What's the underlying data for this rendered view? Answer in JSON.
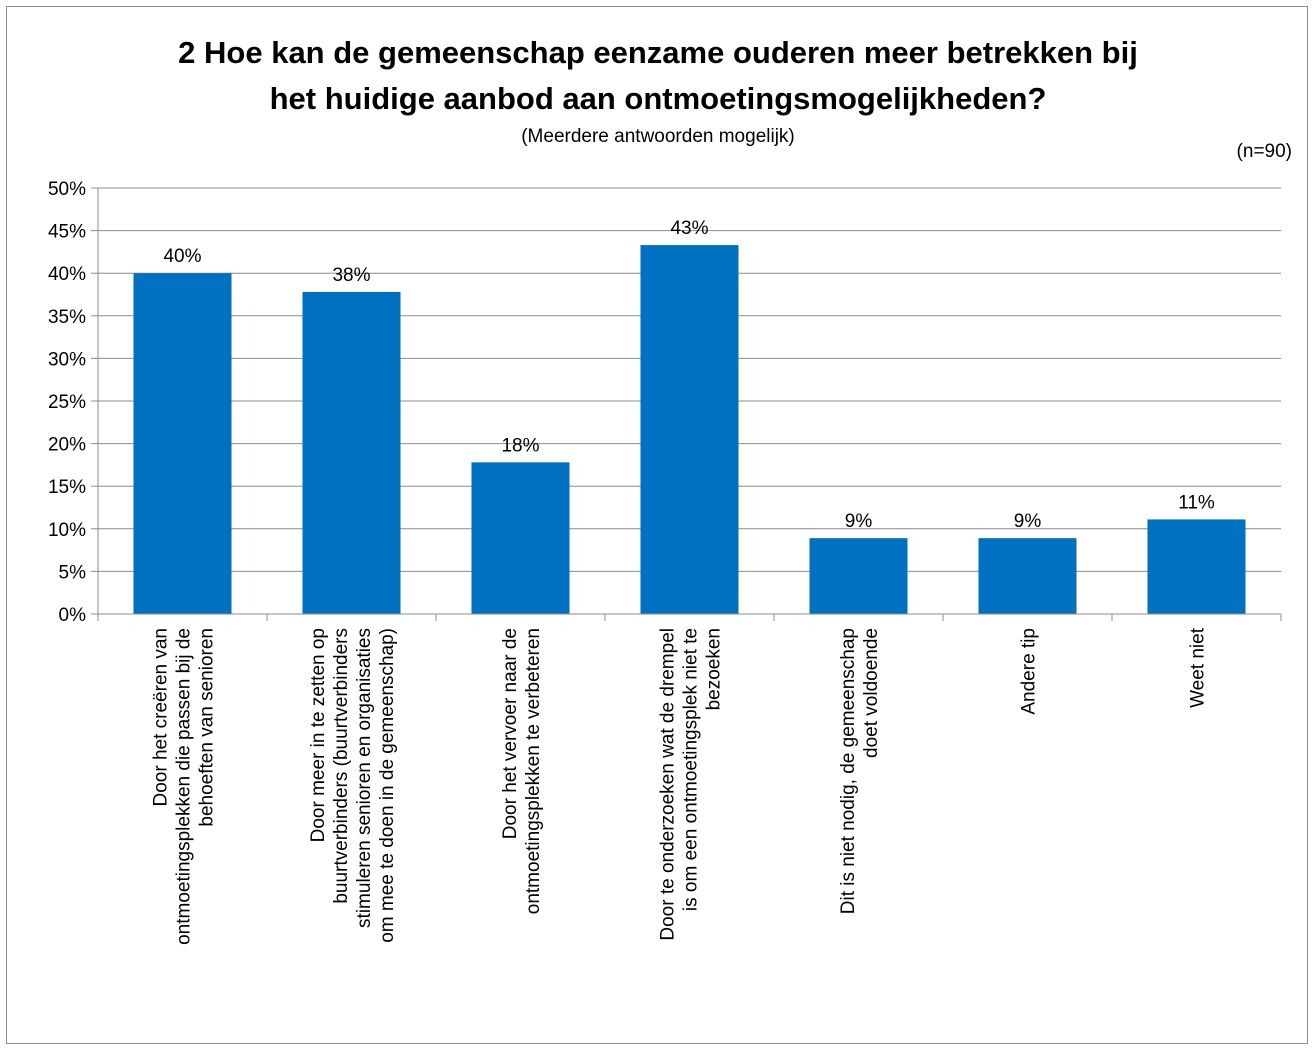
{
  "chart_data": {
    "type": "bar",
    "title_line1": "2 Hoe kan de gemeenschap eenzame ouderen meer betrekken bij",
    "title_line2": "het huidige aanbod aan ontmoetingsmogelijkheden?",
    "subtitle": "(Meerdere antwoorden mogelijk)",
    "sample_size": "(n=90)",
    "xlabel": "",
    "ylabel": "",
    "ylim": [
      0,
      50
    ],
    "yticks": [
      0,
      5,
      10,
      15,
      20,
      25,
      30,
      35,
      40,
      45,
      50
    ],
    "ytick_suffix": "%",
    "grid": true,
    "bar_color": "#0070C0",
    "categories": [
      [
        "Door het creëren van",
        "ontmoetingsplekken die passen bij de",
        "behoeften van senioren"
      ],
      [
        "Door meer in te zetten op",
        "buurtverbinders (buurtverbinders",
        "stimuleren senioren en organisaties",
        "om mee te doen in de gemeenschap)"
      ],
      [
        "Door het vervoer naar de",
        "ontmoetingsplekken te verbeteren"
      ],
      [
        "Door te onderzoeken wat de drempel",
        "is om een ontmoetingsplek niet te",
        "bezoeken"
      ],
      [
        "Dit is niet nodig, de gemeenschap",
        "doet voldoende"
      ],
      [
        "Andere tip"
      ],
      [
        "Weet niet"
      ]
    ],
    "values": [
      40,
      37.8,
      17.8,
      43.3,
      8.9,
      8.9,
      11.1
    ],
    "data_labels": [
      "40%",
      "38%",
      "18%",
      "43%",
      "9%",
      "9%",
      "11%"
    ]
  }
}
